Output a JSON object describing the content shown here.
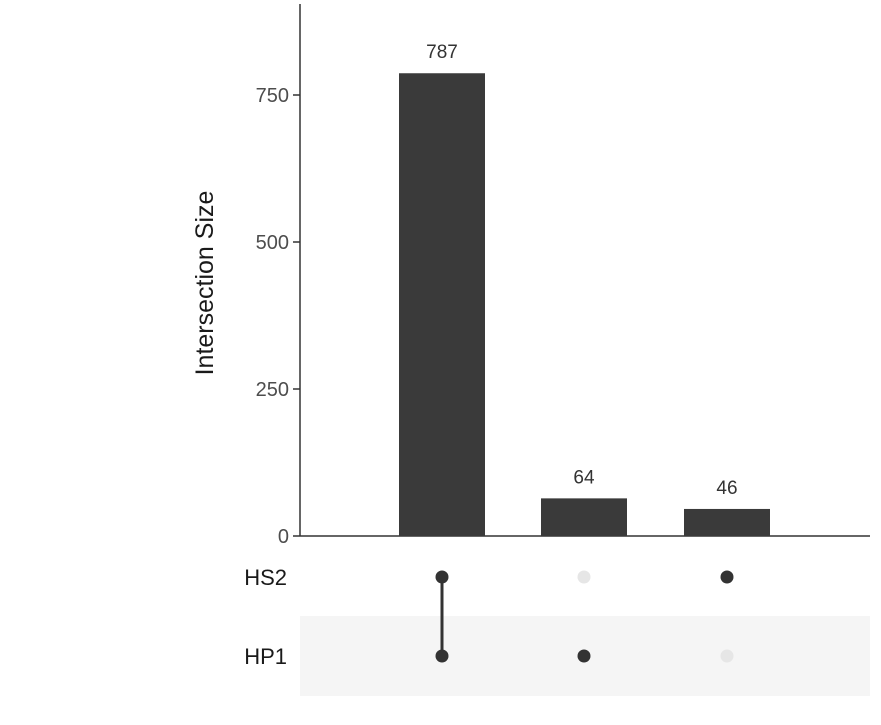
{
  "chart_data": {
    "type": "bar",
    "variant": "upset",
    "ylabel": "Intersection Size",
    "ylim": [
      0,
      900
    ],
    "yticks": [
      0,
      250,
      500,
      750
    ],
    "sets": [
      "HS2",
      "HP1"
    ],
    "intersections": [
      {
        "value": 787,
        "label": "787",
        "members": [
          "HS2",
          "HP1"
        ]
      },
      {
        "value": 64,
        "label": "64",
        "members": [
          "HP1"
        ]
      },
      {
        "value": 46,
        "label": "46",
        "members": [
          "HS2"
        ]
      }
    ],
    "colors": {
      "bar": "#3a3a3a",
      "dot_active": "#333333",
      "dot_inactive": "#e6e6e6",
      "stripe": "#f5f5f5",
      "axis": "#333333"
    }
  }
}
